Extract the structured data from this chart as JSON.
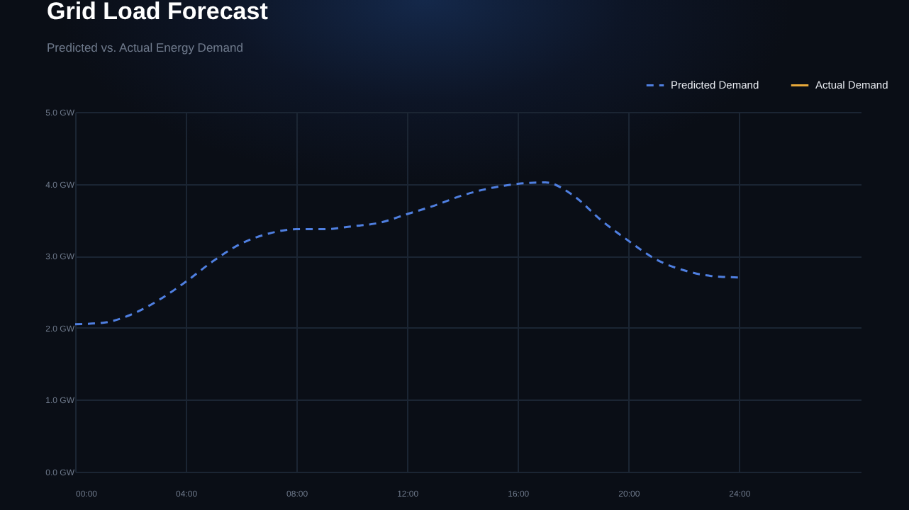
{
  "chart_data": {
    "type": "line",
    "title": "Grid Load Forecast",
    "subtitle": "Predicted vs. Actual Energy Demand",
    "x": [
      0,
      1,
      2,
      3,
      4,
      5,
      6,
      7,
      8,
      9,
      10,
      11,
      12,
      13,
      14,
      15,
      16,
      17,
      18,
      19,
      20,
      21,
      22,
      23,
      24
    ],
    "series": [
      {
        "name": "Predicted Demand",
        "color": "#4f7fe0",
        "line_style": "dashed",
        "values": [
          2.05,
          2.07,
          2.18,
          2.38,
          2.64,
          2.93,
          3.17,
          3.31,
          3.37,
          3.37,
          3.41,
          3.46,
          3.58,
          3.7,
          3.84,
          3.94,
          4.0,
          4.02,
          3.84,
          3.5,
          3.21,
          2.95,
          2.8,
          2.72,
          2.7
        ]
      },
      {
        "name": "Actual Demand",
        "color": "#e8a93a",
        "line_style": "solid",
        "values": [
          null,
          null,
          null,
          null,
          null,
          null,
          null,
          null,
          null,
          null,
          null,
          null,
          null,
          null,
          null,
          null,
          null,
          null,
          null,
          null,
          null,
          null,
          null,
          null,
          null
        ]
      }
    ],
    "xlim": [
      0,
      28.4
    ],
    "xticks": [
      {
        "value": 0,
        "label": "00:00"
      },
      {
        "value": 4,
        "label": "04:00"
      },
      {
        "value": 8,
        "label": "08:00"
      },
      {
        "value": 12,
        "label": "12:00"
      },
      {
        "value": 16,
        "label": "16:00"
      },
      {
        "value": 20,
        "label": "20:00"
      },
      {
        "value": 24,
        "label": "24:00"
      }
    ],
    "ylim": [
      0,
      5
    ],
    "yticks": [
      {
        "value": 0,
        "label": "0.0 GW"
      },
      {
        "value": 1,
        "label": "1.0 GW"
      },
      {
        "value": 2,
        "label": "2.0 GW"
      },
      {
        "value": 3,
        "label": "3.0 GW"
      },
      {
        "value": 4,
        "label": "4.0 GW"
      },
      {
        "value": 5,
        "label": "5.0 GW"
      }
    ],
    "grid": true,
    "legend": "top right"
  }
}
